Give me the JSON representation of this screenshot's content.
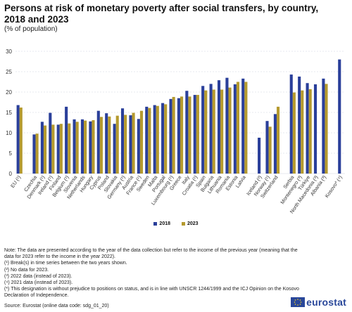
{
  "title": "Persons at risk of monetary poverty after social transfers, by country, 2018 and 2023",
  "subtitle": "(% of population)",
  "chart_data": {
    "type": "bar",
    "title": "Persons at risk of monetary poverty after social transfers, by country, 2018 and 2023",
    "subtitle": "(% of population)",
    "xlabel": "",
    "ylabel": "",
    "ylim": [
      0,
      30
    ],
    "yticks": [
      0,
      5,
      10,
      15,
      20,
      25,
      30
    ],
    "grid": true,
    "legend_position": "bottom",
    "categories": [
      "EU (¹)",
      "",
      "Czechia",
      "Denmark (¹)",
      "Ireland (¹)",
      "Finland",
      "Belgium (¹)",
      "Slovenia",
      "Netherlands",
      "Hungary",
      "Cyprus",
      "Poland",
      "Slovakia",
      "Germany (¹)",
      "Austria",
      "France (¹)",
      "Sweden",
      "Malta",
      "Portugal",
      "Luxembourg (¹)",
      "Greece",
      "Italy",
      "Croatia (¹)",
      "Spain",
      "Bulgaria",
      "Lithuania",
      "Romania",
      "Estonia",
      "Latvia",
      "",
      "Iceland (²)",
      "Norway (¹)",
      "Switzerland",
      "",
      "Serbia",
      "Montenegro (³)",
      "Türkiye",
      "North Macedonia (³)",
      "Albania (³)",
      "",
      "Kosovo* (⁴)"
    ],
    "series": [
      {
        "name": "2018",
        "color": "#2a3f9a",
        "values": [
          16.8,
          null,
          9.6,
          12.7,
          14.9,
          12.0,
          16.4,
          13.3,
          13.3,
          12.8,
          15.4,
          14.8,
          12.2,
          16.0,
          14.3,
          13.4,
          16.4,
          16.8,
          17.3,
          18.3,
          18.5,
          20.3,
          19.3,
          21.5,
          22.0,
          22.9,
          23.5,
          21.9,
          23.3,
          null,
          8.8,
          12.9,
          14.6,
          null,
          24.3,
          23.8,
          22.2,
          21.9,
          23.3,
          null,
          28.0
        ]
      },
      {
        "name": "2023",
        "color": "#b59a2e",
        "values": [
          16.2,
          null,
          9.8,
          11.8,
          12.0,
          12.2,
          12.3,
          12.7,
          13.0,
          13.1,
          13.9,
          14.0,
          14.2,
          14.4,
          14.9,
          15.4,
          16.1,
          16.6,
          17.0,
          18.8,
          18.9,
          18.9,
          19.3,
          20.4,
          20.6,
          20.6,
          21.1,
          22.5,
          22.5,
          null,
          null,
          11.5,
          16.4,
          null,
          19.9,
          20.4,
          20.7,
          null,
          22.0,
          null,
          null
        ]
      }
    ]
  },
  "legend": [
    {
      "label": "2018",
      "color": "#2a3f9a"
    },
    {
      "label": "2023",
      "color": "#b59a2e"
    }
  ],
  "notes": [
    "Note: The data are presented according to the year of the data collection but refer to the income of the previous year (meaning that the data for 2023 refer to the income in the year 2022).",
    "(¹) Break(s) in time series between the two years shown.",
    "(²) No data for 2023.",
    "(³) 2022 data (instead of 2023).",
    "(⁴) 2021 data (instead of 2023).",
    "(*) This designation is without prejudice to positions on status, and is in line with UNSCR 1244/1999 and the ICJ Opinion on the Kosovo Declaration of Independence."
  ],
  "source": "Source: Eurostat (online data code: sdg_01_20)",
  "logo_text": "eurostat",
  "colors": {
    "grid": "#cfd3e0",
    "axis_text": "#333333",
    "brand": "#29479a"
  }
}
